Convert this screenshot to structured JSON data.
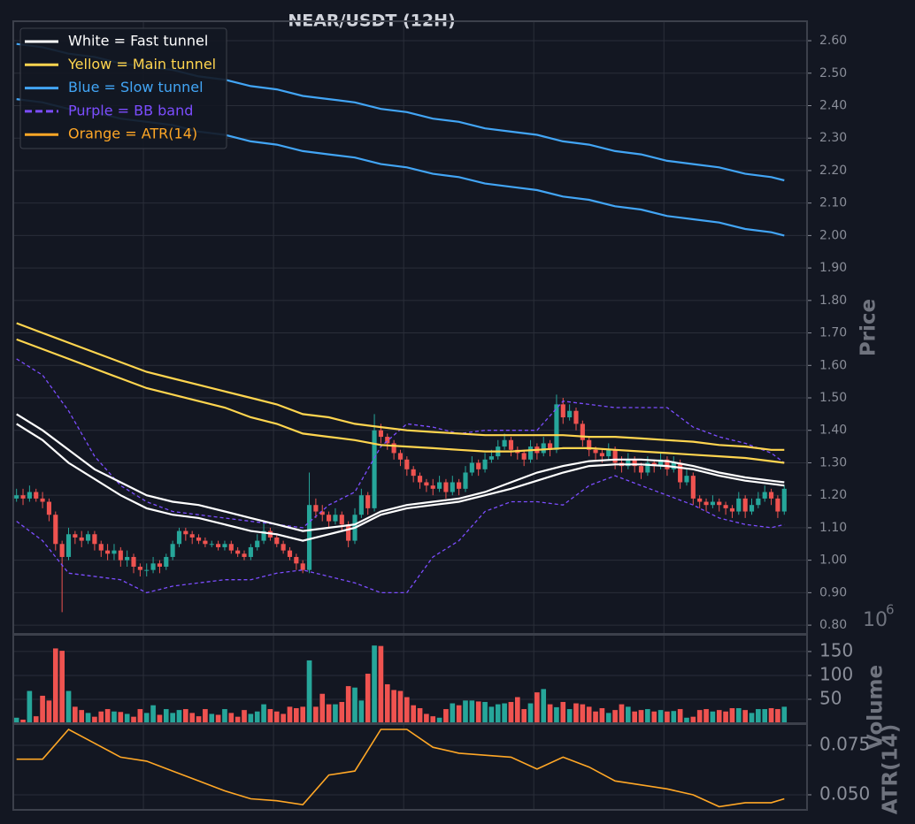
{
  "chart_data": [
    {
      "type": "candlestick",
      "title": "NEAR/USDT (12H)",
      "ylabel": "Price",
      "grid": true,
      "legend": "upper left",
      "xlim": [
        0,
        122
      ],
      "xticks": [
        20,
        40,
        60,
        80,
        100
      ],
      "ylim": [
        0.773,
        2.66
      ],
      "yticks": [
        {
          "value": 0.8,
          "label": "0.80"
        },
        {
          "value": 0.9,
          "label": "0.90"
        },
        {
          "value": 1.0,
          "label": "1.00"
        },
        {
          "value": 1.1,
          "label": "1.10"
        },
        {
          "value": 1.2,
          "label": "1.20"
        },
        {
          "value": 1.3,
          "label": "1.30"
        },
        {
          "value": 1.4,
          "label": "1.40"
        },
        {
          "value": 1.5,
          "label": "1.50"
        },
        {
          "value": 1.6,
          "label": "1.60"
        },
        {
          "value": 1.7,
          "label": "1.70"
        },
        {
          "value": 1.8,
          "label": "1.80"
        },
        {
          "value": 1.9,
          "label": "1.90"
        },
        {
          "value": 2.0,
          "label": "2.00"
        },
        {
          "value": 2.1,
          "label": "2.10"
        },
        {
          "value": 2.2,
          "label": "2.20"
        },
        {
          "value": 2.3,
          "label": "2.30"
        },
        {
          "value": 2.4,
          "label": "2.40"
        },
        {
          "value": 2.5,
          "label": "2.50"
        },
        {
          "value": 2.6,
          "label": "2.60"
        }
      ],
      "up_color": "#26a69a",
      "down_color": "#ef5350",
      "open": [
        1.19,
        1.2,
        1.19,
        1.21,
        1.19,
        1.18,
        1.14,
        1.05,
        1.01,
        1.08,
        1.07,
        1.06,
        1.08,
        1.05,
        1.03,
        1.02,
        1.03,
        1.0,
        1.01,
        0.98,
        0.97,
        0.97,
        0.99,
        0.98,
        1.01,
        1.05,
        1.09,
        1.08,
        1.07,
        1.06,
        1.05,
        1.05,
        1.04,
        1.05,
        1.03,
        1.02,
        1.01,
        1.04,
        1.06,
        1.09,
        1.07,
        1.05,
        1.03,
        1.01,
        0.99,
        0.97,
        1.17,
        1.15,
        1.14,
        1.12,
        1.14,
        1.11,
        1.06,
        1.14,
        1.2,
        1.16,
        1.4,
        1.38,
        1.36,
        1.33,
        1.31,
        1.28,
        1.26,
        1.24,
        1.23,
        1.22,
        1.24,
        1.21,
        1.24,
        1.22,
        1.27,
        1.3,
        1.28,
        1.31,
        1.32,
        1.35,
        1.37,
        1.34,
        1.33,
        1.31,
        1.35,
        1.33,
        1.36,
        1.34,
        1.48,
        1.44,
        1.46,
        1.42,
        1.37,
        1.34,
        1.33,
        1.32,
        1.34,
        1.3,
        1.29,
        1.31,
        1.29,
        1.27,
        1.3,
        1.29,
        1.31,
        1.28,
        1.3,
        1.24,
        1.26,
        1.19,
        1.18,
        1.17,
        1.18,
        1.17,
        1.16,
        1.15,
        1.19,
        1.15,
        1.17,
        1.19,
        1.21,
        1.19,
        1.15
      ],
      "high": [
        1.22,
        1.22,
        1.23,
        1.22,
        1.21,
        1.19,
        1.15,
        1.06,
        1.1,
        1.09,
        1.09,
        1.09,
        1.09,
        1.06,
        1.05,
        1.05,
        1.04,
        1.03,
        1.02,
        0.99,
        0.99,
        1.01,
        1.0,
        1.02,
        1.06,
        1.1,
        1.1,
        1.09,
        1.08,
        1.07,
        1.06,
        1.06,
        1.06,
        1.06,
        1.04,
        1.03,
        1.05,
        1.08,
        1.12,
        1.1,
        1.08,
        1.06,
        1.04,
        1.02,
        1.0,
        1.27,
        1.19,
        1.17,
        1.15,
        1.16,
        1.15,
        1.12,
        1.16,
        1.22,
        1.21,
        1.45,
        1.42,
        1.39,
        1.37,
        1.34,
        1.32,
        1.29,
        1.27,
        1.25,
        1.25,
        1.26,
        1.25,
        1.26,
        1.25,
        1.29,
        1.32,
        1.31,
        1.33,
        1.34,
        1.37,
        1.39,
        1.38,
        1.35,
        1.34,
        1.37,
        1.36,
        1.38,
        1.37,
        1.51,
        1.5,
        1.48,
        1.47,
        1.43,
        1.38,
        1.35,
        1.34,
        1.36,
        1.35,
        1.32,
        1.33,
        1.32,
        1.3,
        1.32,
        1.31,
        1.33,
        1.32,
        1.32,
        1.31,
        1.28,
        1.27,
        1.2,
        1.19,
        1.2,
        1.19,
        1.18,
        1.17,
        1.21,
        1.2,
        1.19,
        1.21,
        1.23,
        1.22,
        1.2,
        1.23
      ],
      "low": [
        1.18,
        1.17,
        1.18,
        1.18,
        1.16,
        1.12,
        1.03,
        0.84,
        1.0,
        1.05,
        1.04,
        1.05,
        1.03,
        1.01,
        1.0,
        1.0,
        0.98,
        0.98,
        0.96,
        0.95,
        0.95,
        0.96,
        0.96,
        0.97,
        1.0,
        1.04,
        1.06,
        1.05,
        1.05,
        1.04,
        1.04,
        1.03,
        1.03,
        1.02,
        1.01,
        1.0,
        1.0,
        1.03,
        1.05,
        1.06,
        1.04,
        1.02,
        1.0,
        0.97,
        0.96,
        0.96,
        1.13,
        1.12,
        1.1,
        1.11,
        1.09,
        1.04,
        1.05,
        1.13,
        1.14,
        1.15,
        1.36,
        1.34,
        1.31,
        1.29,
        1.26,
        1.24,
        1.22,
        1.21,
        1.2,
        1.21,
        1.19,
        1.2,
        1.2,
        1.21,
        1.26,
        1.26,
        1.27,
        1.3,
        1.31,
        1.34,
        1.32,
        1.31,
        1.29,
        1.3,
        1.31,
        1.32,
        1.32,
        1.33,
        1.42,
        1.43,
        1.4,
        1.35,
        1.32,
        1.31,
        1.3,
        1.31,
        1.28,
        1.27,
        1.28,
        1.27,
        1.25,
        1.26,
        1.27,
        1.28,
        1.26,
        1.27,
        1.22,
        1.23,
        1.17,
        1.16,
        1.15,
        1.16,
        1.15,
        1.14,
        1.13,
        1.14,
        1.13,
        1.14,
        1.16,
        1.18,
        1.17,
        1.13,
        1.14
      ],
      "close": [
        1.2,
        1.19,
        1.21,
        1.19,
        1.18,
        1.14,
        1.05,
        1.01,
        1.08,
        1.07,
        1.06,
        1.08,
        1.05,
        1.03,
        1.02,
        1.03,
        1.0,
        1.01,
        0.98,
        0.97,
        0.97,
        0.99,
        0.98,
        1.01,
        1.05,
        1.09,
        1.08,
        1.07,
        1.06,
        1.05,
        1.05,
        1.04,
        1.05,
        1.03,
        1.02,
        1.01,
        1.04,
        1.06,
        1.09,
        1.07,
        1.05,
        1.03,
        1.01,
        0.99,
        0.97,
        1.17,
        1.15,
        1.14,
        1.12,
        1.14,
        1.11,
        1.06,
        1.14,
        1.2,
        1.16,
        1.4,
        1.38,
        1.36,
        1.33,
        1.31,
        1.28,
        1.26,
        1.24,
        1.23,
        1.22,
        1.24,
        1.21,
        1.24,
        1.22,
        1.27,
        1.3,
        1.28,
        1.31,
        1.32,
        1.35,
        1.37,
        1.34,
        1.33,
        1.31,
        1.35,
        1.33,
        1.36,
        1.34,
        1.48,
        1.44,
        1.46,
        1.42,
        1.37,
        1.34,
        1.33,
        1.32,
        1.34,
        1.3,
        1.29,
        1.31,
        1.29,
        1.27,
        1.3,
        1.29,
        1.31,
        1.28,
        1.3,
        1.24,
        1.26,
        1.19,
        1.18,
        1.17,
        1.18,
        1.17,
        1.16,
        1.15,
        1.19,
        1.15,
        1.17,
        1.19,
        1.21,
        1.19,
        1.15,
        1.22
      ],
      "line_x": [
        0,
        4,
        8,
        12,
        16,
        20,
        24,
        28,
        32,
        36,
        40,
        44,
        48,
        52,
        56,
        60,
        64,
        68,
        72,
        76,
        80,
        84,
        88,
        92,
        96,
        100,
        104,
        108,
        112,
        116,
        118
      ],
      "tunnels": [
        {
          "name": "White = Fast tunnel",
          "color": "#ffffff",
          "upper": [
            1.45,
            1.4,
            1.34,
            1.28,
            1.24,
            1.2,
            1.18,
            1.17,
            1.15,
            1.13,
            1.11,
            1.09,
            1.1,
            1.11,
            1.15,
            1.17,
            1.18,
            1.19,
            1.21,
            1.24,
            1.27,
            1.29,
            1.305,
            1.31,
            1.31,
            1.305,
            1.29,
            1.27,
            1.255,
            1.245,
            1.24
          ],
          "lower": [
            1.42,
            1.37,
            1.3,
            1.25,
            1.2,
            1.16,
            1.14,
            1.13,
            1.11,
            1.09,
            1.08,
            1.06,
            1.08,
            1.1,
            1.14,
            1.16,
            1.17,
            1.18,
            1.2,
            1.22,
            1.245,
            1.27,
            1.29,
            1.295,
            1.295,
            1.29,
            1.28,
            1.26,
            1.245,
            1.235,
            1.23
          ]
        },
        {
          "name": "Yellow = Main tunnel",
          "color": "#ffd54f",
          "upper": [
            1.73,
            1.7,
            1.67,
            1.64,
            1.61,
            1.58,
            1.56,
            1.54,
            1.52,
            1.5,
            1.48,
            1.45,
            1.44,
            1.42,
            1.41,
            1.4,
            1.395,
            1.39,
            1.385,
            1.385,
            1.385,
            1.385,
            1.38,
            1.38,
            1.375,
            1.37,
            1.365,
            1.355,
            1.35,
            1.34,
            1.34
          ],
          "lower": [
            1.68,
            1.65,
            1.62,
            1.59,
            1.56,
            1.53,
            1.51,
            1.49,
            1.47,
            1.44,
            1.42,
            1.39,
            1.38,
            1.37,
            1.355,
            1.35,
            1.345,
            1.34,
            1.335,
            1.335,
            1.34,
            1.345,
            1.345,
            1.34,
            1.335,
            1.33,
            1.325,
            1.32,
            1.315,
            1.305,
            1.3
          ]
        },
        {
          "name": "Blue = Slow tunnel",
          "color": "#42a5f5",
          "upper": [
            2.59,
            2.58,
            2.56,
            2.55,
            2.53,
            2.52,
            2.51,
            2.49,
            2.48,
            2.46,
            2.45,
            2.43,
            2.42,
            2.41,
            2.39,
            2.38,
            2.36,
            2.35,
            2.33,
            2.32,
            2.31,
            2.29,
            2.28,
            2.26,
            2.25,
            2.23,
            2.22,
            2.21,
            2.19,
            2.18,
            2.17
          ],
          "lower": [
            2.42,
            2.41,
            2.39,
            2.38,
            2.36,
            2.35,
            2.34,
            2.32,
            2.31,
            2.29,
            2.28,
            2.26,
            2.25,
            2.24,
            2.22,
            2.21,
            2.19,
            2.18,
            2.16,
            2.15,
            2.14,
            2.12,
            2.11,
            2.09,
            2.08,
            2.06,
            2.05,
            2.04,
            2.02,
            2.01,
            2.0
          ]
        }
      ],
      "bb": {
        "name": "Purple = BB band",
        "color": "#7c4dff",
        "dashed": true,
        "upper": [
          1.62,
          1.57,
          1.46,
          1.32,
          1.23,
          1.18,
          1.15,
          1.14,
          1.13,
          1.12,
          1.11,
          1.1,
          1.17,
          1.21,
          1.35,
          1.42,
          1.41,
          1.39,
          1.4,
          1.4,
          1.4,
          1.49,
          1.48,
          1.47,
          1.47,
          1.47,
          1.41,
          1.38,
          1.36,
          1.33,
          1.3
        ],
        "lower": [
          1.12,
          1.06,
          0.96,
          0.95,
          0.94,
          0.9,
          0.92,
          0.93,
          0.94,
          0.94,
          0.96,
          0.97,
          0.95,
          0.93,
          0.9,
          0.9,
          1.01,
          1.06,
          1.15,
          1.18,
          1.18,
          1.17,
          1.23,
          1.26,
          1.23,
          1.2,
          1.17,
          1.13,
          1.11,
          1.1,
          1.11
        ]
      }
    },
    {
      "type": "bar",
      "ylabel": "Volume",
      "offset_label": {
        "base": "10",
        "exponent": "6"
      },
      "grid": true,
      "xlim": [
        0,
        122
      ],
      "xticks": [
        20,
        40,
        60,
        80,
        100
      ],
      "ylim": [
        0,
        185
      ],
      "yticks": [
        50,
        100,
        150
      ],
      "up_color": "#26a69a",
      "down_color": "#ef5350",
      "values": [
        12,
        8,
        68,
        15,
        58,
        48,
        157,
        152,
        68,
        35,
        28,
        22,
        14,
        25,
        30,
        25,
        24,
        20,
        14,
        30,
        22,
        38,
        18,
        30,
        22,
        28,
        30,
        22,
        15,
        30,
        20,
        18,
        30,
        22,
        14,
        28,
        20,
        25,
        40,
        30,
        25,
        20,
        35,
        32,
        35,
        132,
        35,
        62,
        40,
        40,
        45,
        78,
        75,
        48,
        104,
        163,
        162,
        82,
        70,
        68,
        55,
        38,
        32,
        20,
        15,
        12,
        30,
        42,
        38,
        48,
        48,
        46,
        45,
        35,
        40,
        42,
        45,
        55,
        30,
        42,
        65,
        72,
        40,
        34,
        45,
        30,
        42,
        40,
        35,
        25,
        32,
        22,
        28,
        40,
        35,
        25,
        28,
        30,
        25,
        28,
        25,
        26,
        30,
        12,
        14,
        28,
        30,
        25,
        28,
        25,
        32,
        32,
        28,
        22,
        30,
        30,
        32,
        30,
        35
      ]
    },
    {
      "type": "line",
      "name": "Orange = ATR(14)",
      "ylabel": "ATR(14)",
      "color": "#ffa726",
      "grid": true,
      "xlim": [
        0,
        122
      ],
      "xticks": [
        20,
        40,
        60,
        80,
        100
      ],
      "ylim": [
        0.0424,
        0.0857
      ],
      "yticks": [
        {
          "value": 0.05,
          "label": "0.050"
        },
        0.075
      ],
      "x": [
        0,
        4,
        8,
        12,
        16,
        20,
        24,
        28,
        32,
        36,
        40,
        44,
        48,
        52,
        56,
        60,
        64,
        68,
        72,
        76,
        80,
        84,
        88,
        92,
        96,
        100,
        104,
        108,
        112,
        116,
        118
      ],
      "values": [
        0.068,
        0.068,
        0.083,
        0.076,
        0.069,
        0.067,
        0.062,
        0.057,
        0.052,
        0.048,
        0.047,
        0.045,
        0.06,
        0.062,
        0.083,
        0.083,
        0.074,
        0.071,
        0.07,
        0.069,
        0.063,
        0.069,
        0.064,
        0.057,
        0.055,
        0.053,
        0.05,
        0.044,
        0.046,
        0.046,
        0.048
      ]
    }
  ]
}
